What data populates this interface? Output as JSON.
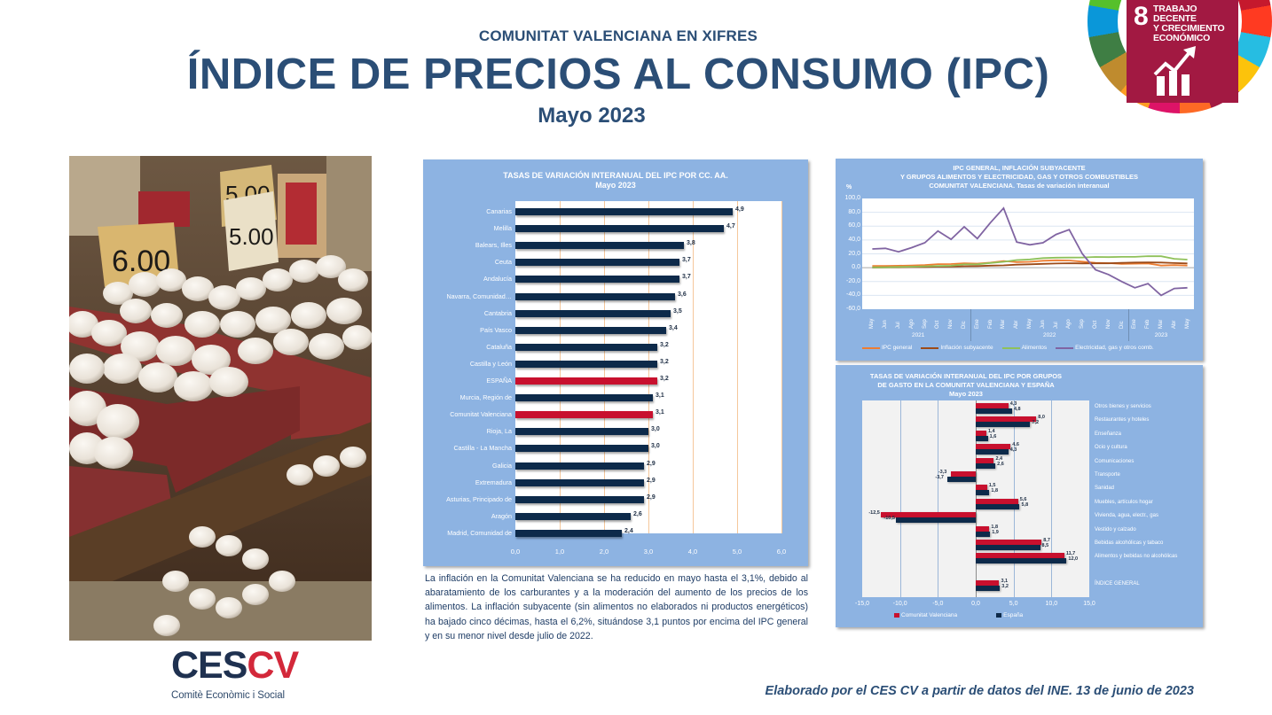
{
  "header": {
    "subtitle": "COMUNITAT VALENCIANA EN XIFRES",
    "title": "ÍNDICE DE PRECIOS AL CONSUMO (IPC)",
    "date": "Mayo 2023"
  },
  "sdg_badge": {
    "number": "8",
    "line1": "TRABAJO DECENTE",
    "line2": "Y CRECIMIENTO",
    "line3": "ECONÓMICO",
    "color": "#a21942",
    "icon": "growth-chart-icon"
  },
  "photo": {
    "subject": "eggs-market-stall-photo",
    "price_tags": [
      "6.00",
      "5.00",
      "5.00"
    ]
  },
  "body_text": "La inflación en la Comunitat Valenciana se ha reducido en mayo hasta el 3,1%, debido al abaratamiento de los carburantes y a la moderación del aumento de los precios de los alimentos. La inflación subyacente (sin alimentos no elaborados ni productos energéticos) ha bajado cinco décimas, hasta el 6,2%, situándose 3,1 puntos por encima del IPC general y en su menor nivel desde julio de 2022.",
  "logo": {
    "mark_ces": "CES",
    "mark_cv": "CV",
    "subtitle": "Comitè Econòmic i Social"
  },
  "footer": {
    "credit": "Elaborado por el CES CV a partir de datos del INE. 13 de junio de 2023"
  },
  "colors": {
    "title_blue": "#2b4e76",
    "panel_blue": "#8db3e2",
    "bar_navy": "#0d2a4a",
    "bar_red": "#c8102e",
    "ipc_general": "#ed7d31",
    "subyacente": "#9c4a17",
    "alimentos": "#8fc15a",
    "electricidad": "#8064a2"
  },
  "chart_data": [
    {
      "type": "bar",
      "orientation": "horizontal",
      "title": "TASAS DE VARIACIÓN INTERANUAL DEL IPC POR CC. AA.",
      "subtitle": "Mayo 2023",
      "xlim": [
        0,
        6
      ],
      "xticks": [
        "0,0",
        "1,0",
        "2,0",
        "3,0",
        "4,0",
        "5,0",
        "6,0"
      ],
      "grid": true,
      "categories": [
        "Canarias",
        "Melilla",
        "Balears, Illes",
        "Ceuta",
        "Andalucía",
        "Navarra, Comunidad…",
        "Cantabria",
        "País Vasco",
        "Cataluña",
        "Castilla y León",
        "ESPAÑA",
        "Murcia, Región de",
        "Comunitat Valenciana",
        "Rioja, La",
        "Castilla - La Mancha",
        "Galicia",
        "Extremadura",
        "Asturias, Principado de",
        "Aragón",
        "Madrid, Comunidad de"
      ],
      "values": [
        4.9,
        4.7,
        3.8,
        3.7,
        3.7,
        3.6,
        3.5,
        3.4,
        3.2,
        3.2,
        3.2,
        3.1,
        3.1,
        3.0,
        3.0,
        2.9,
        2.9,
        2.9,
        2.6,
        2.4
      ],
      "labels": [
        "4,9",
        "4,7",
        "3,8",
        "3,7",
        "3,7",
        "3,6",
        "3,5",
        "3,4",
        "3,2",
        "3,2",
        "3,2",
        "3,1",
        "3,1",
        "3,0",
        "3,0",
        "2,9",
        "2,9",
        "2,9",
        "2,6",
        "2,4"
      ],
      "highlighted": [
        "ESPAÑA",
        "Comunitat Valenciana"
      ]
    },
    {
      "type": "line",
      "title": "IPC GENERAL, INFLACIÓN SUBYACENTE",
      "title_line2": "Y  GRUPOS ALIMENTOS Y ELECTRICIDAD, GAS Y OTROS COMBUSTIBLES",
      "title_line3": "COMUNITAT VALENCIANA. Tasas de variación interanual",
      "ylabel": "%",
      "ylim": [
        -60,
        100
      ],
      "yticks": [
        "100,0",
        "80,0",
        "60,0",
        "40,0",
        "20,0",
        "0,0",
        "-20,0",
        "-40,0",
        "-60,0"
      ],
      "x": [
        "May",
        "Jun",
        "Jul",
        "Ago",
        "Sep",
        "Oct",
        "Nov",
        "Dic",
        "Ene",
        "Feb",
        "Mar",
        "Abr",
        "May",
        "Jun",
        "Jul",
        "Ago",
        "Sep",
        "Oct",
        "Nov",
        "Dic",
        "Ene",
        "Feb",
        "Mar",
        "Abr",
        "May"
      ],
      "years": [
        {
          "label": "2021",
          "span": 8
        },
        {
          "label": "2022",
          "span": 12
        },
        {
          "label": "2023",
          "span": 5
        }
      ],
      "series": [
        {
          "name": "IPC general",
          "color": "#ed7d31",
          "values": [
            2.5,
            2.6,
            2.8,
            3.2,
            3.8,
            5.2,
            5.3,
            6.3,
            5.9,
            7.3,
            9.6,
            8.1,
            8.5,
            10.0,
            10.6,
            10.4,
            8.8,
            7.1,
            6.5,
            5.5,
            5.8,
            6.0,
            3.1,
            3.8,
            3.1
          ]
        },
        {
          "name": "Inflación subyacente",
          "color": "#9c4a17",
          "values": [
            0.2,
            0.4,
            0.6,
            0.9,
            1.1,
            1.4,
            1.7,
            2.1,
            2.4,
            3.0,
            3.4,
            4.4,
            4.9,
            5.5,
            6.1,
            6.4,
            6.2,
            6.3,
            6.3,
            7.0,
            7.5,
            7.6,
            7.5,
            6.7,
            6.2
          ]
        },
        {
          "name": "Alimentos",
          "color": "#8fc15a",
          "values": [
            0.5,
            0.5,
            1.0,
            1.5,
            2.0,
            2.5,
            2.8,
            4.8,
            4.9,
            6.8,
            8.5,
            11.0,
            12.0,
            13.8,
            14.5,
            14.6,
            14.7,
            15.5,
            15.3,
            15.6,
            15.6,
            16.7,
            16.5,
            12.8,
            11.7
          ]
        },
        {
          "name": "Electricidad, gas y otros comb.",
          "color": "#8064a2",
          "values": [
            27,
            28,
            23,
            29,
            36,
            53,
            41,
            59,
            42,
            65,
            86,
            37,
            33,
            36,
            48,
            55,
            20,
            -3,
            -10,
            -20,
            -29,
            -23,
            -40,
            -30,
            -29
          ]
        }
      ],
      "legend_position": "bottom",
      "grid": true
    },
    {
      "type": "bar",
      "orientation": "horizontal",
      "title": "TASAS DE VARIACIÓN INTERANUAL DEL IPC POR GRUPOS",
      "title_line2": "DE GASTO EN LA COMUNITAT VALENCIANA Y ESPAÑA",
      "subtitle": "Mayo 2023",
      "xlim": [
        -15,
        15
      ],
      "xticks": [
        "-15,0",
        "-10,0",
        "-5,0",
        "0,0",
        "5,0",
        "10,0",
        "15,0"
      ],
      "grid": true,
      "categories": [
        "Otros bienes y servicios",
        "Restaurantes y hoteles",
        "Enseñanza",
        "Ocio y cultura",
        "Comunicaciones",
        "Transporte",
        "Sanidad",
        "Muebles, artículos hogar",
        "Vivienda, agua, electr., gas",
        "Vestido y calzado",
        "Bebidas alcohólicas y tabaco",
        "Alimentos y bebidas no alcohólicas",
        "",
        "ÍNDICE GENERAL"
      ],
      "series": [
        {
          "name": "Comunitat Valenciana",
          "color": "#c8102e",
          "values": [
            4.3,
            8.0,
            1.4,
            4.6,
            2.4,
            -3.3,
            1.5,
            5.6,
            -12.5,
            1.8,
            8.7,
            11.7,
            null,
            3.1
          ],
          "labels": [
            "4,3",
            "8,0",
            "1,4",
            "4,6",
            "2,4",
            "-3,3",
            "1,5",
            "5,6",
            "-12,5",
            "1,8",
            "8,7",
            "11,7",
            "",
            "3,1"
          ]
        },
        {
          "name": "España",
          "color": "#0d2a4a",
          "values": [
            4.8,
            7.2,
            1.6,
            4.3,
            2.6,
            -3.7,
            1.8,
            5.8,
            -10.5,
            1.9,
            8.5,
            12.0,
            null,
            3.2
          ],
          "labels": [
            "4,8",
            "7,2",
            "1,6",
            "4,3",
            "2,6",
            "-3,7",
            "1,8",
            "5,8",
            "-10,5",
            "1,9",
            "8,5",
            "12,0",
            "",
            "3,2"
          ]
        }
      ],
      "legend_position": "bottom"
    }
  ]
}
